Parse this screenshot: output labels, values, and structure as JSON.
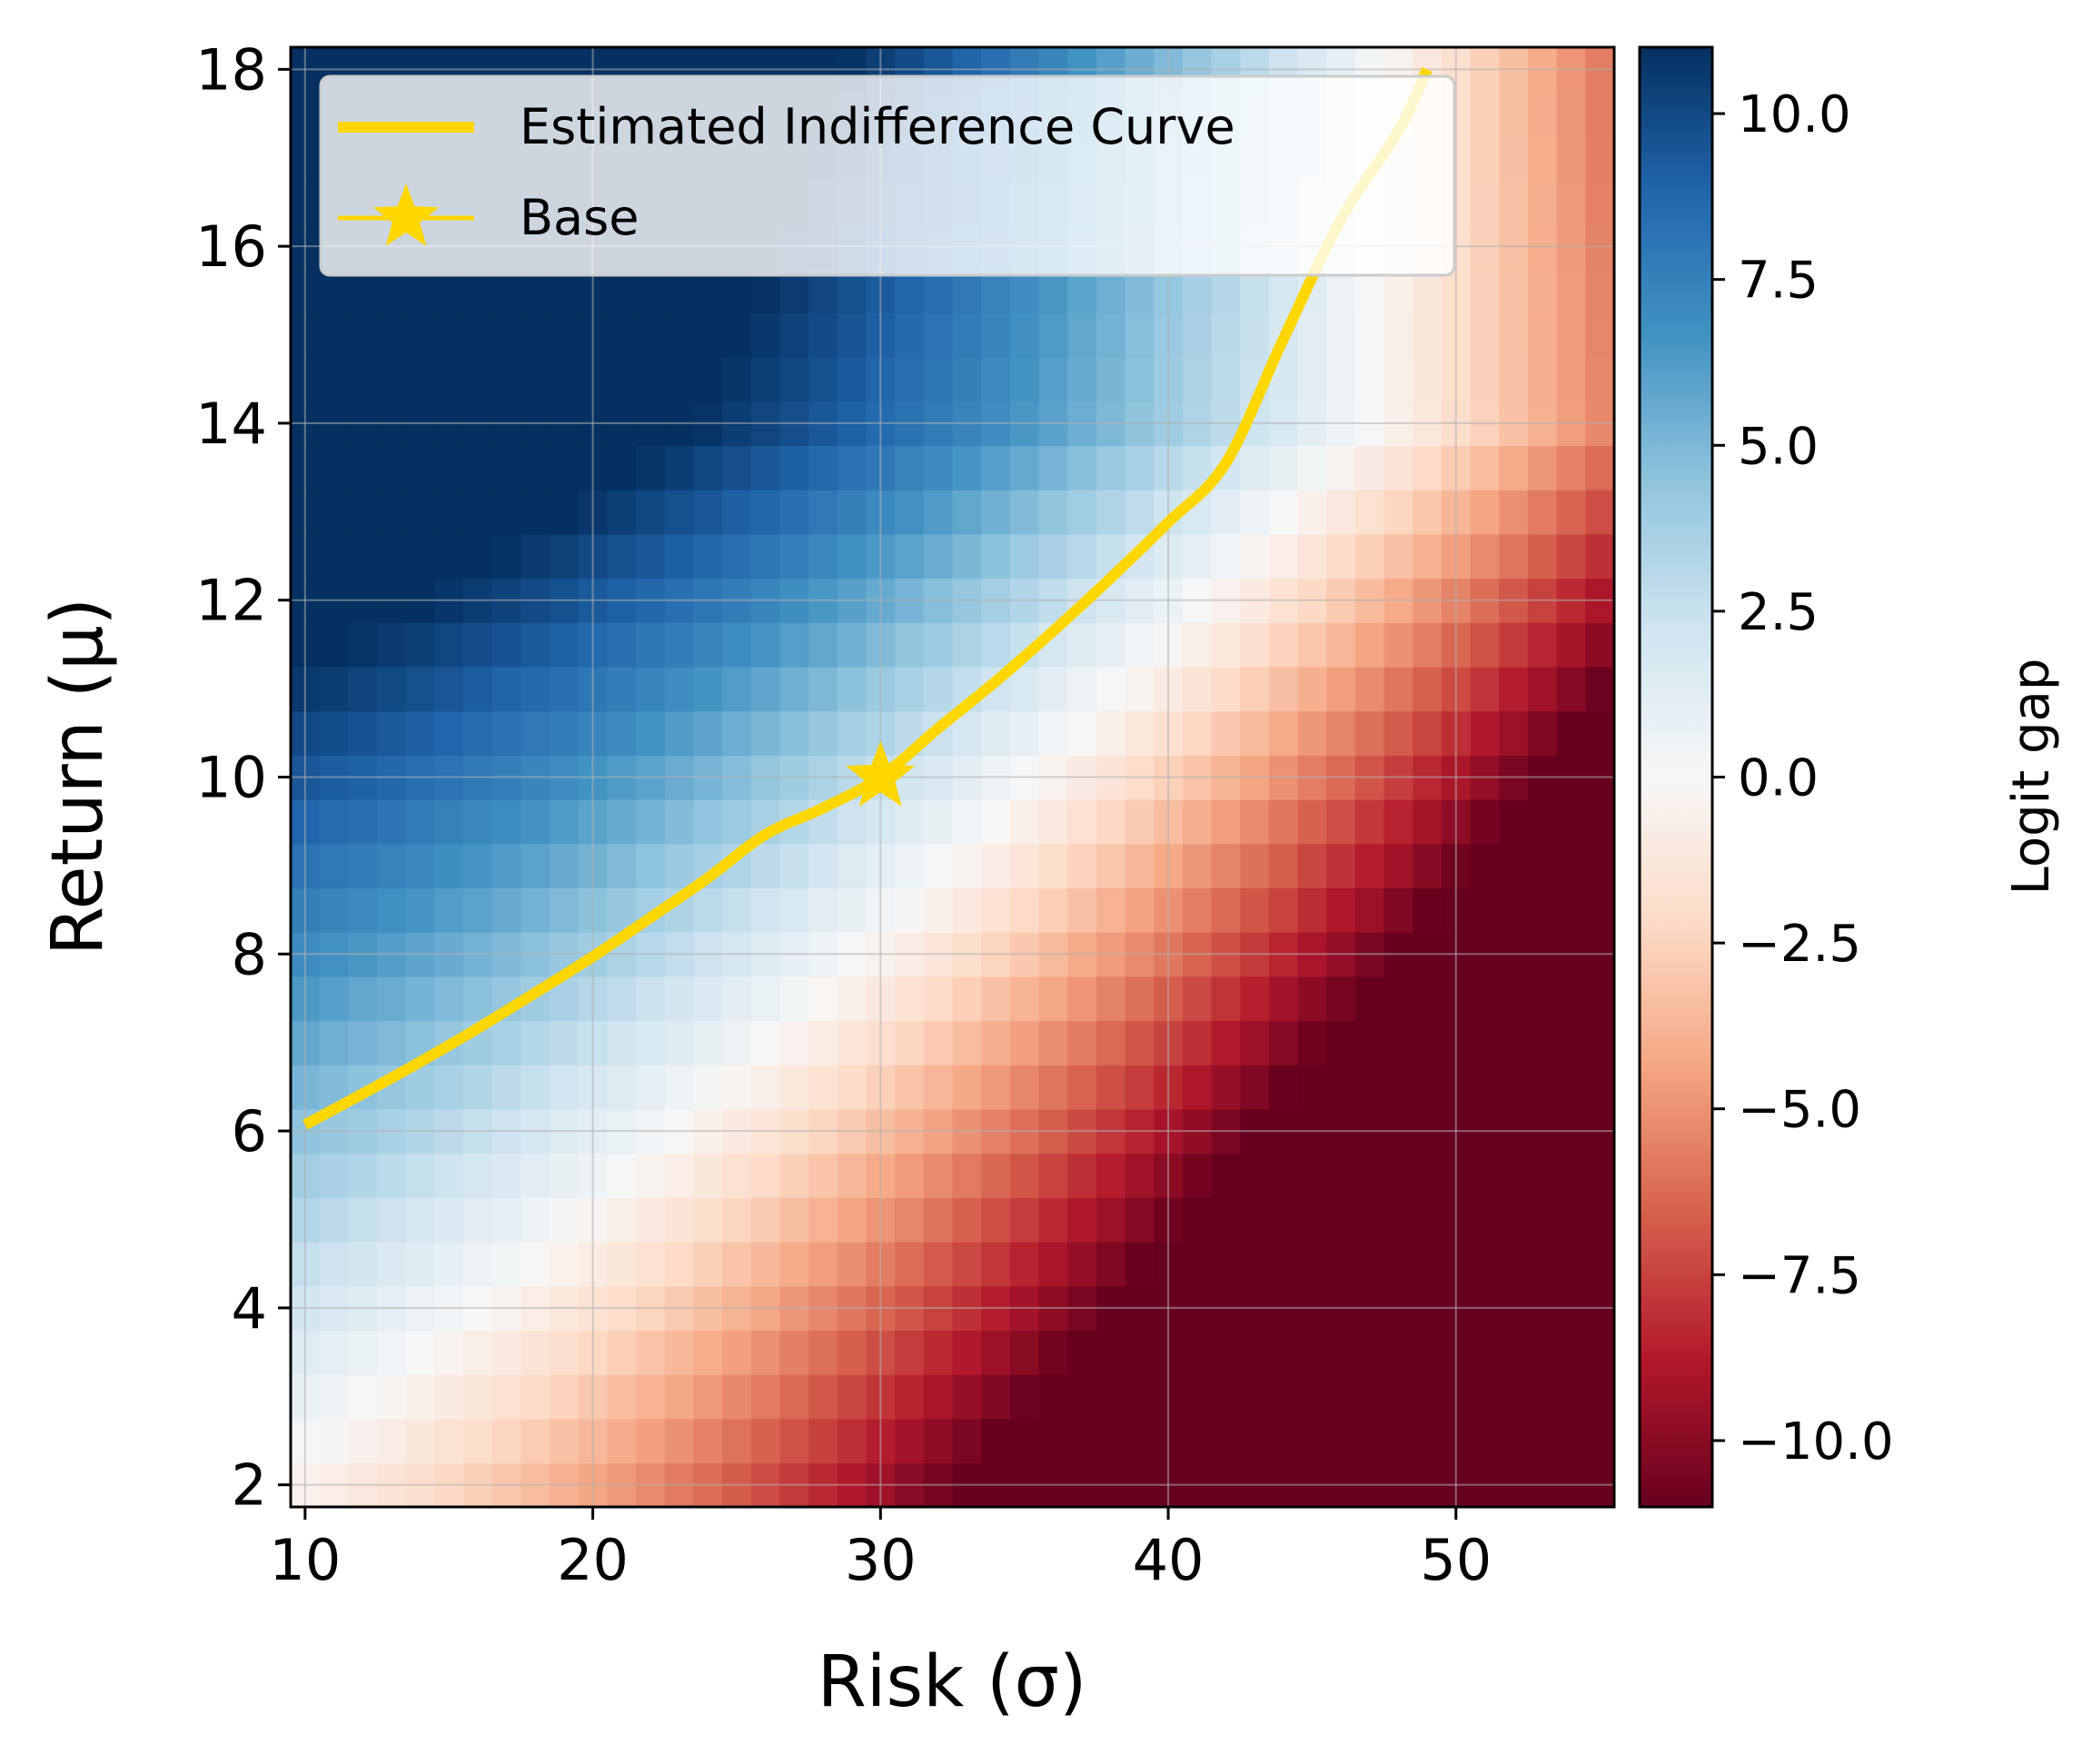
{
  "chart_data": {
    "type": "heatmap",
    "title": "",
    "xlabel": "Risk (σ)",
    "ylabel": "Return (μ)",
    "xlim": [
      9.5,
      55.5
    ],
    "ylim": [
      1.75,
      18.25
    ],
    "x_ticks": [
      "10",
      "20",
      "30",
      "40",
      "50"
    ],
    "y_ticks": [
      "2",
      "4",
      "6",
      "8",
      "10",
      "12",
      "14",
      "16",
      "18"
    ],
    "grid": true,
    "heatmap": {
      "x_range": [
        9.5,
        55.5
      ],
      "y_range": [
        1.75,
        18.25
      ],
      "nx": 46,
      "ny": 33,
      "colormap": "RdBu",
      "vmin": -11,
      "vmax": 11,
      "value_model": "logit_gap ≈ 1.1·μ − 0.1·σ − 0.6·(σ/10)² + 0.4·σ·(μ−10)/30 − 0.35·max(0, μ−14)·(σ/10)"
    },
    "colorbar": {
      "label": "Logit gap",
      "range": [
        -11,
        11
      ],
      "ticks": [
        10.0,
        7.5,
        5.0,
        2.5,
        0.0,
        -2.5,
        -5.0,
        -7.5,
        -10.0
      ],
      "tick_labels": [
        "10.0",
        "7.5",
        "5.0",
        "2.5",
        "0.0",
        "−2.5",
        "−5.0",
        "−7.5",
        "−10.0"
      ]
    },
    "series": [
      {
        "name": "Estimated Indifference Curve",
        "type": "line",
        "color": "#FFD700",
        "x": [
          10,
          12,
          14,
          16,
          18,
          20,
          22,
          24,
          26,
          28,
          30,
          32,
          34,
          36,
          38,
          40,
          42,
          44,
          46,
          48,
          49
        ],
        "y": [
          6.07,
          6.42,
          6.78,
          7.16,
          7.56,
          7.97,
          8.41,
          8.86,
          9.35,
          9.65,
          10.0,
          10.55,
          11.08,
          11.65,
          12.25,
          12.88,
          13.55,
          14.95,
          16.3,
          17.3,
          18.0
        ]
      },
      {
        "name": "Base",
        "type": "marker",
        "marker": "star",
        "color": "#FFD700",
        "x": [
          30
        ],
        "y": [
          10
        ]
      }
    ],
    "legend": {
      "position": "top-left",
      "entries": [
        "Estimated Indifference Curve",
        "Base"
      ]
    }
  }
}
